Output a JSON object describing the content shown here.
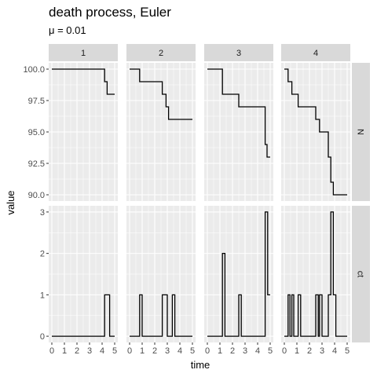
{
  "chart_data": {
    "type": "line",
    "title": "death process, Euler",
    "subtitle": "μ = 0.01",
    "xlabel": "time",
    "ylabel": "value",
    "x_ticks": [
      0,
      1,
      2,
      3,
      4,
      5
    ],
    "x_tick_labels": [
      "0",
      "1",
      "2",
      "3",
      "4",
      "5"
    ],
    "xlim": [
      -0.25,
      5.25
    ],
    "grid": true,
    "column_strips": [
      "1",
      "2",
      "3",
      "4"
    ],
    "rows": [
      {
        "strip": "N",
        "ylim": [
          89.5,
          100.5
        ],
        "y_ticks": [
          100.0,
          97.5,
          95.0,
          92.5,
          90.0
        ],
        "y_tick_labels": [
          "100.0",
          "97.5",
          "95.0",
          "92.5",
          "90.0"
        ],
        "series": [
          {
            "x": [
              0,
              4.2,
              4.2,
              4.4,
              4.4,
              5
            ],
            "y": [
              100,
              100,
              99,
              99,
              98,
              98
            ]
          },
          {
            "x": [
              0,
              0.8,
              0.8,
              2.6,
              2.6,
              2.9,
              2.9,
              3.1,
              3.1,
              3.6,
              3.6,
              5
            ],
            "y": [
              100,
              100,
              99,
              99,
              98,
              98,
              97,
              97,
              96,
              96,
              96,
              96
            ]
          },
          {
            "x": [
              0,
              1.2,
              1.2,
              2.5,
              2.5,
              4.6,
              4.6,
              4.75,
              4.75,
              5
            ],
            "y": [
              100,
              100,
              98,
              98,
              97,
              97,
              94,
              94,
              93,
              93
            ]
          },
          {
            "x": [
              0,
              0.3,
              0.3,
              0.6,
              0.6,
              1.1,
              1.1,
              2.5,
              2.5,
              2.8,
              2.8,
              3.5,
              3.5,
              3.7,
              3.7,
              3.9,
              3.9,
              5
            ],
            "y": [
              100,
              100,
              99,
              99,
              98,
              98,
              97,
              97,
              96,
              96,
              95,
              95,
              93,
              93,
              91,
              91,
              90,
              90
            ]
          }
        ]
      },
      {
        "strip": "ct",
        "ylim": [
          -0.15,
          3.15
        ],
        "y_ticks": [
          0,
          1,
          2,
          3
        ],
        "y_tick_labels": [
          "0",
          "1",
          "2",
          "3"
        ],
        "series": [
          {
            "x": [
              0,
              4.2,
              4.2,
              4.6,
              4.6,
              5
            ],
            "y": [
              0,
              0,
              1,
              1,
              0,
              0
            ]
          },
          {
            "x": [
              0,
              0.8,
              0.8,
              1.0,
              1.0,
              2.6,
              2.6,
              3.0,
              3.0,
              3.4,
              3.4,
              3.6,
              3.6,
              5
            ],
            "y": [
              0,
              0,
              1,
              1,
              0,
              0,
              1,
              1,
              0,
              0,
              1,
              1,
              0,
              0
            ]
          },
          {
            "x": [
              0,
              1.2,
              1.2,
              1.4,
              1.4,
              2.5,
              2.5,
              2.7,
              2.7,
              4.6,
              4.6,
              4.8,
              4.8,
              5
            ],
            "y": [
              0,
              0,
              2,
              2,
              0,
              0,
              1,
              1,
              0,
              0,
              3,
              3,
              1,
              1
            ]
          },
          {
            "x": [
              0,
              0.3,
              0.3,
              0.45,
              0.45,
              0.6,
              0.6,
              0.75,
              0.75,
              1.1,
              1.1,
              1.3,
              1.3,
              2.5,
              2.5,
              2.7,
              2.7,
              2.8,
              2.8,
              3.0,
              3.0,
              3.5,
              3.5,
              3.7,
              3.7,
              3.9,
              3.9,
              4.1,
              4.1,
              5
            ],
            "y": [
              0,
              0,
              1,
              1,
              0,
              0,
              1,
              1,
              0,
              0,
              1,
              1,
              0,
              0,
              1,
              1,
              0,
              0,
              1,
              1,
              0,
              0,
              1,
              1,
              3,
              3,
              1,
              1,
              0,
              0
            ]
          }
        ]
      }
    ]
  }
}
